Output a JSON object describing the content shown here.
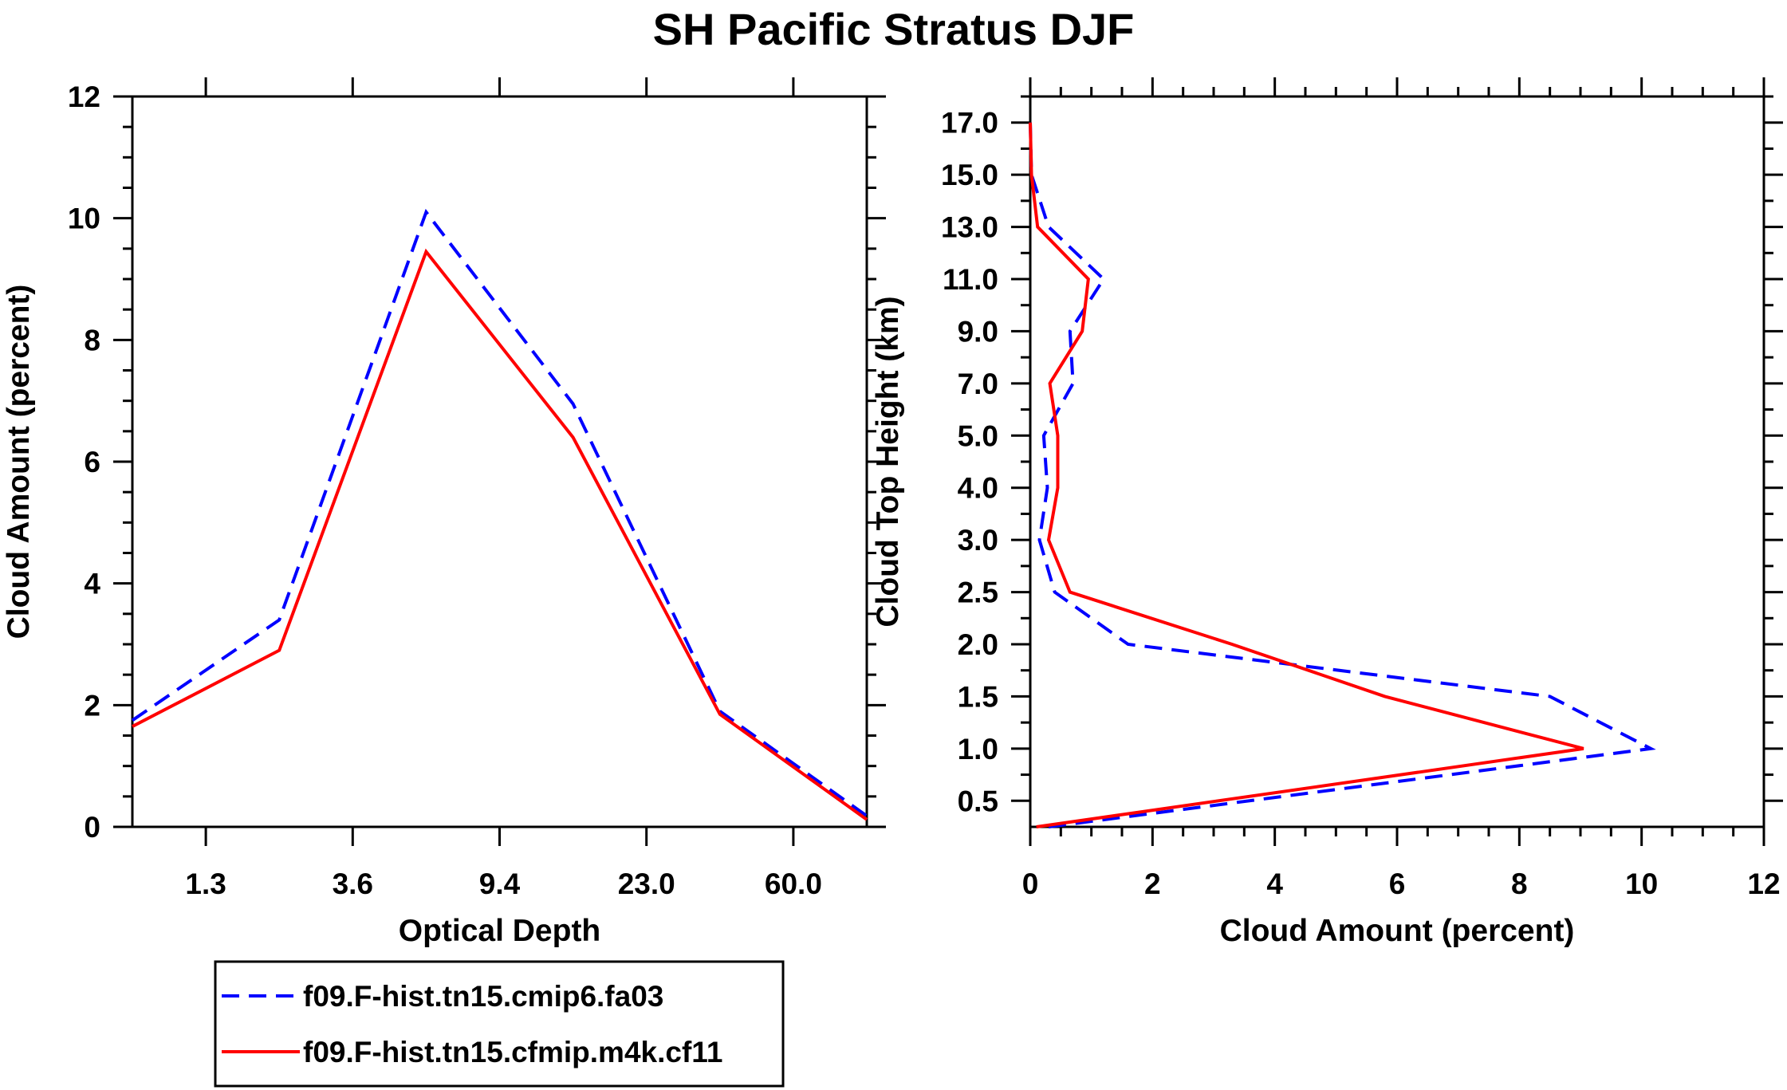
{
  "title": "SH Pacific Stratus DJF",
  "chart_data": [
    {
      "type": "line",
      "xlabel": "Optical Depth",
      "ylabel": "Cloud Amount (percent)",
      "x_tick_labels": [
        "1.3",
        "3.6",
        "9.4",
        "23.0",
        "60.0"
      ],
      "ylim": [
        0,
        12
      ],
      "y_ticks": [
        0,
        2,
        4,
        6,
        8,
        10,
        12
      ],
      "x": [
        0,
        1,
        2,
        3,
        4,
        5
      ],
      "series": [
        {
          "name": "f09.F-hist.tn15.cmip6.fa03",
          "values": [
            1.75,
            3.4,
            10.1,
            6.95,
            1.9,
            0.18
          ],
          "color": "#0000ff",
          "dash": true
        },
        {
          "name": "f09.F-hist.tn15.cfmip.m4k.cf11",
          "values": [
            1.65,
            2.9,
            9.45,
            6.4,
            1.85,
            0.12
          ],
          "color": "#ff0000",
          "dash": false
        }
      ]
    },
    {
      "type": "line",
      "orientation": "horizontal",
      "xlabel": "Cloud Amount (percent)",
      "ylabel": "Cloud Top Height (km)",
      "xlim": [
        0,
        12
      ],
      "x_ticks": [
        0,
        2,
        4,
        6,
        8,
        10,
        12
      ],
      "y_tick_labels": [
        "0.5",
        "1.0",
        "1.5",
        "2.0",
        "2.5",
        "3.0",
        "4.0",
        "5.0",
        "7.0",
        "9.0",
        "11.0",
        "13.0",
        "15.0",
        "17.0"
      ],
      "y_levels": [
        0.25,
        0.75,
        1.25,
        1.75,
        2.25,
        2.75,
        3.5,
        4.5,
        6.0,
        8.0,
        10.0,
        12.0,
        14.0,
        16.0
      ],
      "series": [
        {
          "name": "f09.F-hist.tn15.cmip6.fa03",
          "values": [
            0.3,
            10.15,
            8.5,
            1.6,
            0.4,
            0.15,
            0.28,
            0.22,
            0.7,
            0.65,
            1.2,
            0.3,
            0.02,
            0.0
          ],
          "color": "#0000ff",
          "dash": true
        },
        {
          "name": "f09.F-hist.tn15.cfmip.m4k.cf11",
          "values": [
            0.1,
            9.05,
            5.8,
            3.3,
            0.65,
            0.3,
            0.45,
            0.45,
            0.32,
            0.85,
            0.95,
            0.12,
            0.02,
            0.0
          ],
          "color": "#ff0000",
          "dash": false
        }
      ]
    }
  ],
  "legend": {
    "entries": [
      {
        "label": "f09.F-hist.tn15.cmip6.fa03",
        "color": "#0000ff",
        "dash": true
      },
      {
        "label": "f09.F-hist.tn15.cfmip.m4k.cf11",
        "color": "#ff0000",
        "dash": false
      }
    ]
  }
}
